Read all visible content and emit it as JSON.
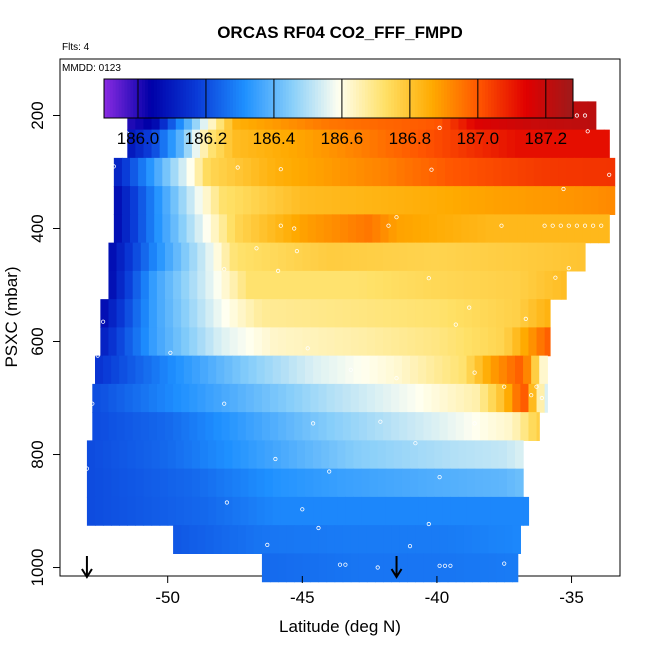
{
  "chart_data": {
    "type": "heatmap",
    "title": "ORCAS RF04 CO2_FFF_FMPD",
    "subtitle_left": "Flts: 4",
    "inset_label": "MMDD: 0123",
    "xlabel": "Latitude (deg N)",
    "ylabel": "PSXC (mbar)",
    "xlim": [
      -54,
      -33.2
    ],
    "ylim": [
      1015,
      100
    ],
    "x_ticks": [
      -50,
      -45,
      -40,
      -35
    ],
    "x_tick_labels": [
      "-50",
      "-45",
      "-40",
      "-35"
    ],
    "y_ticks": [
      200,
      400,
      600,
      800,
      1000
    ],
    "y_tick_labels": [
      "200",
      "400",
      "600",
      "800",
      "1000"
    ],
    "colorbar": {
      "min": 185.9,
      "max": 187.28,
      "ticks": [
        186.0,
        186.2,
        186.4,
        186.6,
        186.8,
        187.0,
        187.2
      ],
      "tick_labels": [
        "186.0",
        "186.2",
        "186.4",
        "186.6",
        "186.8",
        "187.0",
        "187.2"
      ]
    },
    "colormap": [
      "#8a2be2",
      "#0000a8",
      "#0a3cd8",
      "#1e90ff",
      "#87cefa",
      "#fffff0",
      "#ffe066",
      "#ffaa00",
      "#ff5500",
      "#e00000",
      "#9e1a1a"
    ],
    "bands": [
      {
        "p": 200,
        "lat_min": -51.5,
        "lat_max": -34.1,
        "anchors": [
          [
            -51.5,
            186.0
          ],
          [
            -50.5,
            186.05
          ],
          [
            -49.2,
            186.4
          ],
          [
            -48.3,
            186.65
          ],
          [
            -47.5,
            186.85
          ],
          [
            -44,
            186.95
          ],
          [
            -40,
            187.0
          ],
          [
            -38.5,
            187.15
          ],
          [
            -36,
            187.2
          ],
          [
            -34.1,
            187.22
          ]
        ]
      },
      {
        "p": 250,
        "lat_min": -51.5,
        "lat_max": -33.6,
        "anchors": [
          [
            -51.5,
            186.08
          ],
          [
            -50.5,
            186.2
          ],
          [
            -49.5,
            186.4
          ],
          [
            -48.5,
            186.7
          ],
          [
            -47.5,
            186.82
          ],
          [
            -44,
            186.9
          ],
          [
            -40,
            187.02
          ],
          [
            -37,
            187.12
          ],
          [
            -33.6,
            187.12
          ]
        ]
      },
      {
        "p": 300,
        "lat_min": -52.0,
        "lat_max": -33.4,
        "anchors": [
          [
            -52,
            186.1
          ],
          [
            -50.5,
            186.35
          ],
          [
            -49.2,
            186.58
          ],
          [
            -48.5,
            186.75
          ],
          [
            -46,
            186.85
          ],
          [
            -42,
            186.93
          ],
          [
            -39.5,
            187.0
          ],
          [
            -36,
            187.05
          ],
          [
            -33.4,
            187.06
          ]
        ]
      },
      {
        "p": 350,
        "lat_min": -52.0,
        "lat_max": -33.4,
        "anchors": [
          [
            -52,
            186.05
          ],
          [
            -50.5,
            186.3
          ],
          [
            -49,
            186.55
          ],
          [
            -48,
            186.72
          ],
          [
            -45,
            186.82
          ],
          [
            -41,
            186.85
          ],
          [
            -38,
            186.88
          ],
          [
            -35,
            186.9
          ],
          [
            -33.4,
            186.92
          ]
        ]
      },
      {
        "p": 400,
        "lat_min": -52.0,
        "lat_max": -33.6,
        "anchors": [
          [
            -52,
            186.05
          ],
          [
            -50.5,
            186.3
          ],
          [
            -48.8,
            186.55
          ],
          [
            -47.5,
            186.75
          ],
          [
            -45,
            186.88
          ],
          [
            -42.5,
            186.95
          ],
          [
            -41.5,
            186.88
          ],
          [
            -38,
            186.83
          ],
          [
            -33.6,
            186.83
          ]
        ]
      },
      {
        "p": 450,
        "lat_min": -52.2,
        "lat_max": -34.5,
        "anchors": [
          [
            -52.2,
            186.05
          ],
          [
            -50.5,
            186.3
          ],
          [
            -48.5,
            186.55
          ],
          [
            -47.5,
            186.72
          ],
          [
            -44,
            186.78
          ],
          [
            -40,
            186.76
          ],
          [
            -37,
            186.78
          ],
          [
            -34.5,
            186.8
          ]
        ]
      },
      {
        "p": 500,
        "lat_min": -52.2,
        "lat_max": -35.2,
        "anchors": [
          [
            -52.2,
            186.05
          ],
          [
            -50.5,
            186.35
          ],
          [
            -48.2,
            186.58
          ],
          [
            -47,
            186.72
          ],
          [
            -43,
            186.72
          ],
          [
            -40,
            186.75
          ],
          [
            -37,
            186.77
          ],
          [
            -35.2,
            186.82
          ]
        ]
      },
      {
        "p": 550,
        "lat_min": -52.5,
        "lat_max": -35.8,
        "anchors": [
          [
            -52.5,
            186.05
          ],
          [
            -50.5,
            186.35
          ],
          [
            -48,
            186.58
          ],
          [
            -46.5,
            186.68
          ],
          [
            -43,
            186.7
          ],
          [
            -40,
            186.72
          ],
          [
            -37,
            186.77
          ],
          [
            -35.8,
            186.85
          ]
        ]
      },
      {
        "p": 600,
        "lat_min": -52.5,
        "lat_max": -35.8,
        "anchors": [
          [
            -52.5,
            186.1
          ],
          [
            -50.5,
            186.35
          ],
          [
            -48,
            186.55
          ],
          [
            -46,
            186.63
          ],
          [
            -43,
            186.66
          ],
          [
            -40,
            186.7
          ],
          [
            -37.5,
            186.76
          ],
          [
            -36.5,
            186.9
          ],
          [
            -35.8,
            187.0
          ]
        ]
      },
      {
        "p": 650,
        "lat_min": -52.7,
        "lat_max": -35.9,
        "anchors": [
          [
            -52.7,
            186.15
          ],
          [
            -50,
            186.3
          ],
          [
            -47,
            186.45
          ],
          [
            -44.5,
            186.55
          ],
          [
            -41.5,
            186.62
          ],
          [
            -39,
            186.72
          ],
          [
            -38,
            186.88
          ],
          [
            -36.8,
            187.0
          ],
          [
            -35.9,
            186.55
          ]
        ]
      },
      {
        "p": 700,
        "lat_min": -52.8,
        "lat_max": -35.9,
        "anchors": [
          [
            -52.8,
            186.2
          ],
          [
            -50,
            186.3
          ],
          [
            -47,
            186.4
          ],
          [
            -44,
            186.5
          ],
          [
            -41,
            186.58
          ],
          [
            -38.5,
            186.66
          ],
          [
            -37.5,
            186.82
          ],
          [
            -36.8,
            187.02
          ],
          [
            -35.9,
            186.52
          ]
        ]
      },
      {
        "p": 750,
        "lat_min": -52.8,
        "lat_max": -36.2,
        "anchors": [
          [
            -52.8,
            186.2
          ],
          [
            -50,
            186.25
          ],
          [
            -47,
            186.35
          ],
          [
            -44,
            186.45
          ],
          [
            -40,
            186.55
          ],
          [
            -37.2,
            186.63
          ],
          [
            -36.6,
            186.72
          ],
          [
            -36.2,
            186.78
          ]
        ]
      },
      {
        "p": 800,
        "lat_min": -53.0,
        "lat_max": -36.8,
        "anchors": [
          [
            -53,
            186.2
          ],
          [
            -50,
            186.25
          ],
          [
            -46.5,
            186.35
          ],
          [
            -43,
            186.45
          ],
          [
            -39.5,
            186.5
          ],
          [
            -37.5,
            186.52
          ],
          [
            -36.8,
            186.55
          ]
        ]
      },
      {
        "p": 850,
        "lat_min": -53.0,
        "lat_max": -36.8,
        "anchors": [
          [
            -53,
            186.2
          ],
          [
            -49,
            186.25
          ],
          [
            -46,
            186.32
          ],
          [
            -43.5,
            186.35
          ],
          [
            -40,
            186.38
          ],
          [
            -37.5,
            186.4
          ],
          [
            -36.8,
            186.42
          ]
        ]
      },
      {
        "p": 900,
        "lat_min": -53.0,
        "lat_max": -36.6,
        "anchors": [
          [
            -53,
            186.2
          ],
          [
            -48.5,
            186.25
          ],
          [
            -46,
            186.3
          ],
          [
            -43,
            186.3
          ],
          [
            -40,
            186.3
          ],
          [
            -36.6,
            186.3
          ]
        ]
      },
      {
        "p": 950,
        "lat_min": -49.8,
        "lat_max": -36.9,
        "anchors": [
          [
            -49.8,
            186.22
          ],
          [
            -46.5,
            186.27
          ],
          [
            -43,
            186.28
          ],
          [
            -39.5,
            186.28
          ],
          [
            -36.9,
            186.3
          ]
        ]
      },
      {
        "p": 1000,
        "lat_min": -46.5,
        "lat_max": -37.0,
        "anchors": [
          [
            -46.5,
            186.25
          ],
          [
            -43,
            186.27
          ],
          [
            -40,
            186.27
          ],
          [
            -37,
            186.28
          ]
        ]
      }
    ],
    "samples": [
      [
        -51.2,
        198
      ],
      [
        -50.9,
        198
      ],
      [
        -50.6,
        198
      ],
      [
        -50.3,
        198
      ],
      [
        -50.0,
        198
      ],
      [
        -49.7,
        198
      ],
      [
        -49.4,
        198
      ],
      [
        -49.1,
        198
      ],
      [
        -48.8,
        198
      ],
      [
        -44.3,
        197
      ],
      [
        -44.0,
        199
      ],
      [
        -39.0,
        200
      ],
      [
        -38.7,
        200
      ],
      [
        -38.4,
        200
      ],
      [
        -38.1,
        200
      ],
      [
        -37.8,
        200
      ],
      [
        -37.5,
        200
      ],
      [
        -37.2,
        200
      ],
      [
        -36.9,
        200
      ],
      [
        -36.6,
        200
      ],
      [
        -36.3,
        200
      ],
      [
        -36.0,
        200
      ],
      [
        -35.7,
        200
      ],
      [
        -35.4,
        200
      ],
      [
        -35.1,
        200
      ],
      [
        -34.8,
        200
      ],
      [
        -34.5,
        200
      ],
      [
        -39.9,
        222
      ],
      [
        -34.4,
        228
      ],
      [
        -51.5,
        232
      ],
      [
        -51.6,
        262
      ],
      [
        -52.0,
        290
      ],
      [
        -47.4,
        292
      ],
      [
        -45.8,
        295
      ],
      [
        -40.2,
        296
      ],
      [
        -33.6,
        305
      ],
      [
        -52.1,
        340
      ],
      [
        -35.3,
        330
      ],
      [
        -41.5,
        380
      ],
      [
        -41.8,
        395
      ],
      [
        -45.3,
        400
      ],
      [
        -45.8,
        395
      ],
      [
        -37.6,
        395
      ],
      [
        -36.0,
        395
      ],
      [
        -35.7,
        395
      ],
      [
        -35.4,
        395
      ],
      [
        -35.1,
        395
      ],
      [
        -34.8,
        395
      ],
      [
        -34.5,
        395
      ],
      [
        -34.2,
        395
      ],
      [
        -33.9,
        395
      ],
      [
        -52.3,
        445
      ],
      [
        -46.7,
        435
      ],
      [
        -45.2,
        440
      ],
      [
        -47.9,
        472
      ],
      [
        -40.3,
        488
      ],
      [
        -45.9,
        475
      ],
      [
        -35.1,
        470
      ],
      [
        -35.6,
        487
      ],
      [
        -38.8,
        540
      ],
      [
        -52.4,
        565
      ],
      [
        -39.3,
        570
      ],
      [
        -36.7,
        560
      ],
      [
        -52.6,
        625
      ],
      [
        -44.8,
        612
      ],
      [
        -49.9,
        620
      ],
      [
        -43.2,
        650
      ],
      [
        -38.6,
        655
      ],
      [
        -41.5,
        665
      ],
      [
        -37.5,
        680
      ],
      [
        -36.3,
        680
      ],
      [
        -36.5,
        695
      ],
      [
        -36.1,
        700
      ],
      [
        -52.8,
        710
      ],
      [
        -47.9,
        710
      ],
      [
        -44.6,
        745
      ],
      [
        -42.1,
        742
      ],
      [
        -38.6,
        745
      ],
      [
        -40.8,
        780
      ],
      [
        -53.0,
        825
      ],
      [
        -44.0,
        830
      ],
      [
        -39.9,
        840
      ],
      [
        -46.0,
        808
      ],
      [
        -53.1,
        910
      ],
      [
        -47.8,
        885
      ],
      [
        -45.0,
        897
      ],
      [
        -44.4,
        930
      ],
      [
        -40.3,
        923
      ],
      [
        -36.4,
        935
      ],
      [
        -46.3,
        960
      ],
      [
        -41.0,
        962
      ],
      [
        -37.5,
        993
      ],
      [
        -39.9,
        997
      ],
      [
        -39.7,
        997
      ],
      [
        -39.5,
        997
      ],
      [
        -43.6,
        995
      ],
      [
        -43.4,
        995
      ],
      [
        -42.2,
        1000
      ],
      [
        -36.8,
        1000
      ]
    ],
    "arrows_lat": [
      -53.0,
      -41.5
    ]
  }
}
